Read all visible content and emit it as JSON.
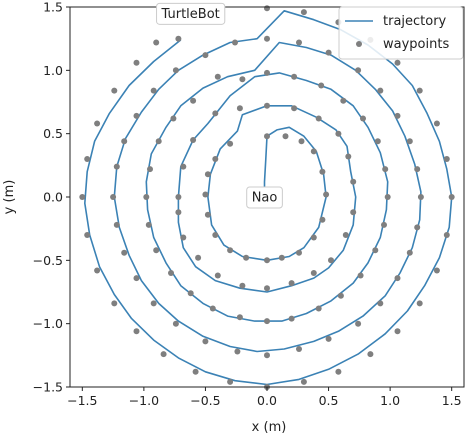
{
  "chart_data": {
    "type": "line",
    "title": "",
    "xlabel": "x (m)",
    "ylabel": "y (m)",
    "xlim": [
      -1.6,
      1.6
    ],
    "ylim": [
      -1.5,
      1.5
    ],
    "xticks": [
      -1.5,
      -1.0,
      -0.5,
      0.0,
      0.5,
      1.0,
      1.5
    ],
    "xtick_labels": [
      "−1.5",
      "−1.0",
      "−0.5",
      "0.0",
      "0.5",
      "1.0",
      "1.5"
    ],
    "yticks": [
      -1.5,
      -1.0,
      -0.5,
      0.0,
      0.5,
      1.0,
      1.5
    ],
    "ytick_labels": [
      "−1.5",
      "−1.0",
      "−0.5",
      "0.0",
      "0.5",
      "1.0",
      "1.5"
    ],
    "grid": false,
    "legend_position": "top-right",
    "series": [
      {
        "name": "trajectory",
        "kind": "line",
        "color": "#3b82b5",
        "points": [
          [
            -0.02,
            0.02
          ],
          [
            -0.02,
            0.12
          ],
          [
            -0.01,
            0.3
          ],
          [
            0.0,
            0.48
          ],
          [
            0.08,
            0.53
          ],
          [
            0.18,
            0.55
          ],
          [
            0.3,
            0.48
          ],
          [
            0.4,
            0.36
          ],
          [
            0.46,
            0.18
          ],
          [
            0.48,
            0.0
          ],
          [
            0.42,
            -0.24
          ],
          [
            0.3,
            -0.4
          ],
          [
            0.18,
            -0.47
          ],
          [
            0.0,
            -0.5
          ],
          [
            -0.2,
            -0.47
          ],
          [
            -0.35,
            -0.38
          ],
          [
            -0.45,
            -0.22
          ],
          [
            -0.48,
            0.0
          ],
          [
            -0.46,
            0.18
          ],
          [
            -0.38,
            0.38
          ],
          [
            -0.24,
            0.52
          ],
          [
            -0.2,
            0.65
          ],
          [
            0.0,
            0.72
          ],
          [
            0.2,
            0.72
          ],
          [
            0.4,
            0.63
          ],
          [
            0.56,
            0.53
          ],
          [
            0.65,
            0.4
          ],
          [
            0.68,
            0.2
          ],
          [
            0.72,
            0.0
          ],
          [
            0.7,
            -0.22
          ],
          [
            0.62,
            -0.42
          ],
          [
            0.5,
            -0.56
          ],
          [
            0.38,
            -0.64
          ],
          [
            0.2,
            -0.7
          ],
          [
            0.0,
            -0.75
          ],
          [
            -0.22,
            -0.72
          ],
          [
            -0.42,
            -0.66
          ],
          [
            -0.58,
            -0.55
          ],
          [
            -0.68,
            -0.4
          ],
          [
            -0.72,
            -0.2
          ],
          [
            -0.72,
            0.0
          ],
          [
            -0.7,
            0.24
          ],
          [
            -0.6,
            0.45
          ],
          [
            -0.48,
            0.58
          ],
          [
            -0.3,
            0.8
          ],
          [
            -0.1,
            0.95
          ],
          [
            0.1,
            0.98
          ],
          [
            0.32,
            0.92
          ],
          [
            0.52,
            0.85
          ],
          [
            0.7,
            0.72
          ],
          [
            0.82,
            0.55
          ],
          [
            0.92,
            0.35
          ],
          [
            0.98,
            0.12
          ],
          [
            0.97,
            -0.1
          ],
          [
            0.92,
            -0.32
          ],
          [
            0.82,
            -0.52
          ],
          [
            0.7,
            -0.68
          ],
          [
            0.52,
            -0.82
          ],
          [
            0.32,
            -0.92
          ],
          [
            0.12,
            -0.98
          ],
          [
            -0.1,
            -0.98
          ],
          [
            -0.32,
            -0.94
          ],
          [
            -0.52,
            -0.84
          ],
          [
            -0.7,
            -0.7
          ],
          [
            -0.82,
            -0.52
          ],
          [
            -0.92,
            -0.32
          ],
          [
            -0.97,
            -0.1
          ],
          [
            -0.98,
            0.12
          ],
          [
            -0.94,
            0.34
          ],
          [
            -0.82,
            0.55
          ],
          [
            -0.7,
            0.72
          ],
          [
            -0.52,
            0.86
          ],
          [
            -0.32,
            0.95
          ],
          [
            -0.1,
            1.0
          ],
          [
            0.1,
            1.22
          ],
          [
            0.32,
            1.18
          ],
          [
            0.52,
            1.12
          ],
          [
            0.72,
            1.0
          ],
          [
            0.88,
            0.85
          ],
          [
            1.02,
            0.68
          ],
          [
            1.12,
            0.48
          ],
          [
            1.2,
            0.26
          ],
          [
            1.25,
            0.04
          ],
          [
            1.24,
            -0.18
          ],
          [
            1.18,
            -0.4
          ],
          [
            1.08,
            -0.6
          ],
          [
            0.96,
            -0.78
          ],
          [
            0.78,
            -0.94
          ],
          [
            0.58,
            -1.06
          ],
          [
            0.38,
            -1.14
          ],
          [
            0.14,
            -1.2
          ],
          [
            -0.08,
            -1.22
          ],
          [
            -0.3,
            -1.18
          ],
          [
            -0.52,
            -1.1
          ],
          [
            -0.72,
            -0.98
          ],
          [
            -0.88,
            -0.84
          ],
          [
            -1.02,
            -0.66
          ],
          [
            -1.12,
            -0.46
          ],
          [
            -1.2,
            -0.24
          ],
          [
            -1.24,
            0.0
          ],
          [
            -1.22,
            0.24
          ],
          [
            -1.15,
            0.46
          ],
          [
            -1.02,
            0.67
          ],
          [
            -0.88,
            0.85
          ],
          [
            -0.72,
            1.0
          ],
          [
            -0.52,
            1.12
          ],
          [
            -0.3,
            1.22
          ],
          [
            -0.08,
            1.25
          ],
          [
            0.14,
            1.47
          ],
          [
            0.38,
            1.4
          ],
          [
            0.6,
            1.32
          ],
          [
            0.82,
            1.2
          ],
          [
            1.02,
            1.05
          ],
          [
            1.18,
            0.88
          ],
          [
            1.3,
            0.66
          ],
          [
            1.4,
            0.44
          ],
          [
            1.46,
            0.22
          ],
          [
            1.5,
            0.0
          ],
          [
            1.48,
            -0.24
          ],
          [
            1.4,
            -0.48
          ],
          [
            1.28,
            -0.7
          ],
          [
            1.14,
            -0.9
          ],
          [
            0.96,
            -1.08
          ],
          [
            0.74,
            -1.24
          ],
          [
            0.5,
            -1.36
          ],
          [
            0.26,
            -1.44
          ],
          [
            0.0,
            -1.48
          ],
          [
            -0.26,
            -1.45
          ],
          [
            -0.5,
            -1.38
          ],
          [
            -0.72,
            -1.27
          ],
          [
            -0.92,
            -1.13
          ],
          [
            -1.1,
            -0.96
          ],
          [
            -1.24,
            -0.77
          ],
          [
            -1.36,
            -0.55
          ],
          [
            -1.44,
            -0.3
          ],
          [
            -1.48,
            -0.05
          ],
          [
            -1.46,
            0.2
          ],
          [
            -1.4,
            0.44
          ],
          [
            -1.28,
            0.66
          ],
          [
            -1.12,
            0.88
          ],
          [
            -0.92,
            1.07
          ],
          [
            -0.7,
            1.24
          ]
        ]
      },
      {
        "name": "waypoints",
        "kind": "scatter",
        "color": "#7f7f7f",
        "points": [
          [
            0.0,
            0.48
          ],
          [
            0.15,
            0.48
          ],
          [
            0.28,
            0.44
          ],
          [
            0.38,
            0.36
          ],
          [
            0.45,
            0.2
          ],
          [
            0.48,
            0.02
          ],
          [
            0.45,
            -0.18
          ],
          [
            0.38,
            -0.32
          ],
          [
            0.26,
            -0.44
          ],
          [
            0.12,
            -0.48
          ],
          [
            0.0,
            -0.5
          ],
          [
            -0.17,
            -0.48
          ],
          [
            -0.3,
            -0.42
          ],
          [
            -0.42,
            -0.3
          ],
          [
            -0.48,
            -0.14
          ],
          [
            -0.5,
            0.02
          ],
          [
            -0.48,
            0.18
          ],
          [
            -0.42,
            0.3
          ],
          [
            -0.3,
            0.42
          ],
          [
            -0.22,
            0.7
          ],
          [
            0.0,
            0.72
          ],
          [
            0.22,
            0.7
          ],
          [
            0.42,
            0.62
          ],
          [
            0.58,
            0.5
          ],
          [
            0.66,
            0.32
          ],
          [
            0.7,
            0.12
          ],
          [
            0.7,
            -0.12
          ],
          [
            0.64,
            -0.3
          ],
          [
            0.52,
            -0.5
          ],
          [
            0.38,
            -0.6
          ],
          [
            0.2,
            -0.68
          ],
          [
            0.0,
            -0.72
          ],
          [
            -0.2,
            -0.7
          ],
          [
            -0.4,
            -0.62
          ],
          [
            -0.56,
            -0.48
          ],
          [
            -0.68,
            -0.32
          ],
          [
            -0.72,
            -0.12
          ],
          [
            -0.72,
            0.0
          ],
          [
            -0.68,
            0.24
          ],
          [
            -0.6,
            0.45
          ],
          [
            -0.42,
            0.66
          ],
          [
            -0.2,
            0.93
          ],
          [
            0.0,
            0.98
          ],
          [
            0.22,
            0.95
          ],
          [
            0.44,
            0.88
          ],
          [
            0.62,
            0.76
          ],
          [
            0.78,
            0.62
          ],
          [
            0.9,
            0.44
          ],
          [
            0.96,
            0.22
          ],
          [
            0.98,
            0.0
          ],
          [
            0.95,
            -0.22
          ],
          [
            0.88,
            -0.42
          ],
          [
            0.76,
            -0.62
          ],
          [
            0.6,
            -0.78
          ],
          [
            0.42,
            -0.88
          ],
          [
            0.2,
            -0.96
          ],
          [
            0.0,
            -0.98
          ],
          [
            -0.22,
            -0.95
          ],
          [
            -0.44,
            -0.88
          ],
          [
            -0.62,
            -0.76
          ],
          [
            -0.78,
            -0.6
          ],
          [
            -0.9,
            -0.42
          ],
          [
            -0.96,
            -0.22
          ],
          [
            -0.98,
            0.0
          ],
          [
            -0.95,
            0.22
          ],
          [
            -0.88,
            0.44
          ],
          [
            -0.76,
            0.62
          ],
          [
            -0.6,
            0.76
          ],
          [
            -0.4,
            0.95
          ],
          [
            0.0,
            1.25
          ],
          [
            0.26,
            1.22
          ],
          [
            0.5,
            1.14
          ],
          [
            0.74,
            1.0
          ],
          [
            0.92,
            0.84
          ],
          [
            1.06,
            0.64
          ],
          [
            1.16,
            0.44
          ],
          [
            1.22,
            0.22
          ],
          [
            1.25,
            0.0
          ],
          [
            1.22,
            -0.24
          ],
          [
            1.16,
            -0.44
          ],
          [
            1.06,
            -0.64
          ],
          [
            0.92,
            -0.84
          ],
          [
            0.74,
            -1.0
          ],
          [
            0.5,
            -1.12
          ],
          [
            0.26,
            -1.2
          ],
          [
            0.0,
            -1.25
          ],
          [
            -0.24,
            -1.22
          ],
          [
            -0.5,
            -1.14
          ],
          [
            -0.74,
            -1.0
          ],
          [
            -0.92,
            -0.84
          ],
          [
            -1.06,
            -0.64
          ],
          [
            -1.16,
            -0.44
          ],
          [
            -1.22,
            -0.22
          ],
          [
            -1.25,
            0.0
          ],
          [
            -1.22,
            0.24
          ],
          [
            -1.16,
            0.44
          ],
          [
            -1.06,
            0.64
          ],
          [
            -0.92,
            0.84
          ],
          [
            -0.74,
            1.0
          ],
          [
            -0.5,
            1.12
          ],
          [
            -0.26,
            1.22
          ],
          [
            0.0,
            1.49
          ],
          [
            0.3,
            1.46
          ],
          [
            0.58,
            1.38
          ],
          [
            0.84,
            1.24
          ],
          [
            1.06,
            1.06
          ],
          [
            1.24,
            0.84
          ],
          [
            1.38,
            0.58
          ],
          [
            1.46,
            0.3
          ],
          [
            1.5,
            0.0
          ],
          [
            1.46,
            -0.3
          ],
          [
            1.38,
            -0.58
          ],
          [
            1.24,
            -0.84
          ],
          [
            1.06,
            -1.06
          ],
          [
            0.84,
            -1.24
          ],
          [
            0.58,
            -1.38
          ],
          [
            0.3,
            -1.46
          ],
          [
            0.0,
            -1.5
          ],
          [
            -0.3,
            -1.46
          ],
          [
            -0.58,
            -1.38
          ],
          [
            -0.84,
            -1.24
          ],
          [
            -1.06,
            -1.06
          ],
          [
            -1.24,
            -0.84
          ],
          [
            -1.38,
            -0.58
          ],
          [
            -1.46,
            -0.3
          ],
          [
            -1.5,
            0.0
          ],
          [
            -1.46,
            0.3
          ],
          [
            -1.38,
            0.58
          ],
          [
            -1.24,
            0.84
          ],
          [
            -1.06,
            1.06
          ],
          [
            -0.9,
            1.22
          ],
          [
            -0.72,
            1.25
          ]
        ]
      }
    ],
    "annotations": [
      {
        "text": "TurtleBot",
        "x": -0.62,
        "y": 1.45
      },
      {
        "text": "Nao",
        "x": -0.02,
        "y": 0.0
      }
    ]
  }
}
